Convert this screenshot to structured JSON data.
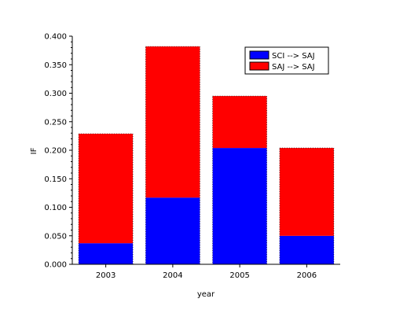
{
  "chart_data": {
    "type": "bar",
    "stacked": true,
    "categories": [
      "2003",
      "2004",
      "2005",
      "2006"
    ],
    "series": [
      {
        "name": "SCI --> SAJ",
        "color": "#0000ff",
        "values": [
          0.037,
          0.117,
          0.204,
          0.05
        ]
      },
      {
        "name": "SAJ --> SAJ",
        "color": "#ff0000",
        "values": [
          0.192,
          0.265,
          0.091,
          0.154
        ]
      }
    ],
    "xlabel": "year",
    "ylabel": "IF",
    "ylim": [
      0,
      0.4
    ],
    "yticks": [
      "0.000",
      "0.050",
      "0.100",
      "0.150",
      "0.200",
      "0.250",
      "0.300",
      "0.350",
      "0.400"
    ],
    "grid": false,
    "legend_position": "top-right"
  }
}
